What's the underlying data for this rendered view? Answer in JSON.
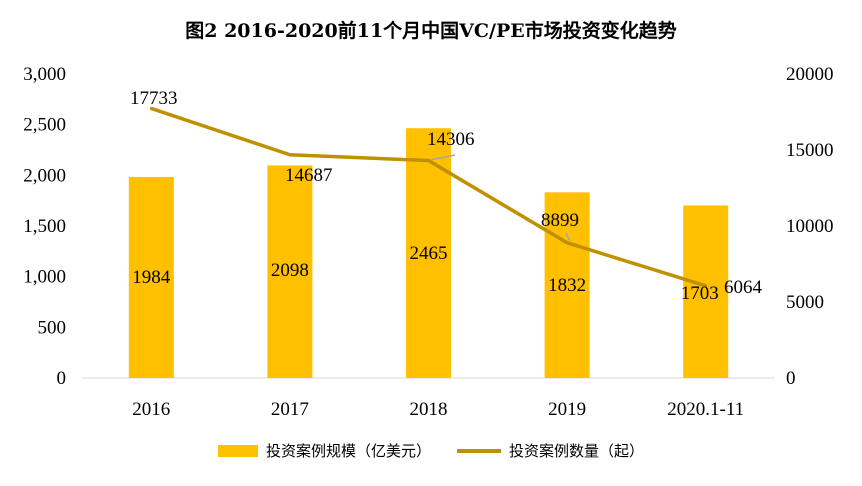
{
  "title": "图2 2016-2020前11个月中国VC/PE市场投资变化趋势",
  "chart_data": {
    "type": "bar+line",
    "categories": [
      "2016",
      "2017",
      "2018",
      "2019",
      "2020.1-11"
    ],
    "series": [
      {
        "name": "投资案例规模（亿美元）",
        "type": "bar",
        "axis": "left",
        "values": [
          1984,
          2098,
          2465,
          1832,
          1703
        ],
        "color": "#FFC000"
      },
      {
        "name": "投资案例数量（起）",
        "type": "line",
        "axis": "right",
        "values": [
          17733,
          14687,
          14306,
          8899,
          6064
        ],
        "color": "#BF9000"
      }
    ],
    "y_left": {
      "range": [
        0,
        3000
      ],
      "ticks": [
        "0",
        "500",
        "1,000",
        "1,500",
        "2,000",
        "2,500",
        "3,000"
      ]
    },
    "y_right": {
      "range": [
        0,
        20000
      ],
      "ticks": [
        "0",
        "5000",
        "10000",
        "15000",
        "20000"
      ]
    },
    "bar_labels": [
      "1984",
      "2098",
      "2465",
      "1832",
      "1703"
    ],
    "line_labels": [
      "17733",
      "14687",
      "14306",
      "8899",
      "6064"
    ],
    "legend_position": "bottom",
    "grid": false
  },
  "legend": {
    "bar_label": "投资案例规模（亿美元）",
    "line_label": "投资案例数量（起）"
  }
}
